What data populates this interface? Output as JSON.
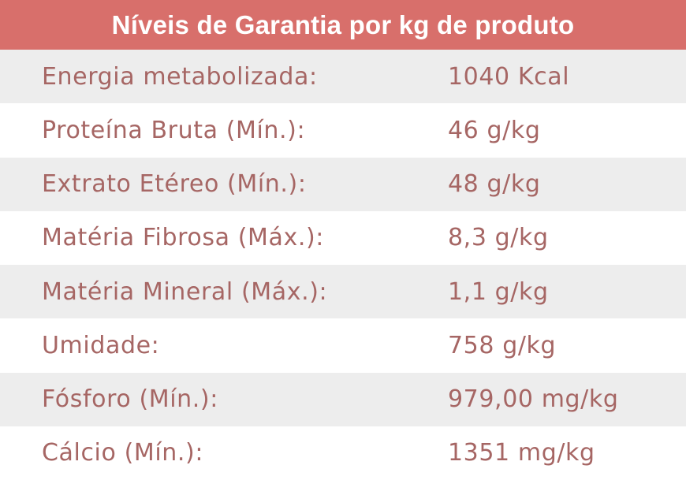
{
  "header": {
    "title": "Níveis de Garantia por kg de produto"
  },
  "rows": [
    {
      "label": "Energia metabolizada:",
      "value": "1040 Kcal"
    },
    {
      "label": "Proteína Bruta (Mín.):",
      "value": "46 g/kg"
    },
    {
      "label": "Extrato Etéreo (Mín.):",
      "value": "48 g/kg"
    },
    {
      "label": "Matéria Fibrosa (Máx.):",
      "value": "8,3 g/kg"
    },
    {
      "label": "Matéria Mineral (Máx.):",
      "value": "1,1 g/kg"
    },
    {
      "label": "Umidade:",
      "value": "758 g/kg"
    },
    {
      "label": "Fósforo (Mín.):",
      "value": "979,00 mg/kg"
    },
    {
      "label": "Cálcio (Mín.):",
      "value": "1351 mg/kg"
    }
  ],
  "colors": {
    "header_bg": "#d86f6b",
    "header_text": "#ffffff",
    "row_alt_bg": "#ededed",
    "row_bg": "#ffffff",
    "text": "#a66664"
  }
}
